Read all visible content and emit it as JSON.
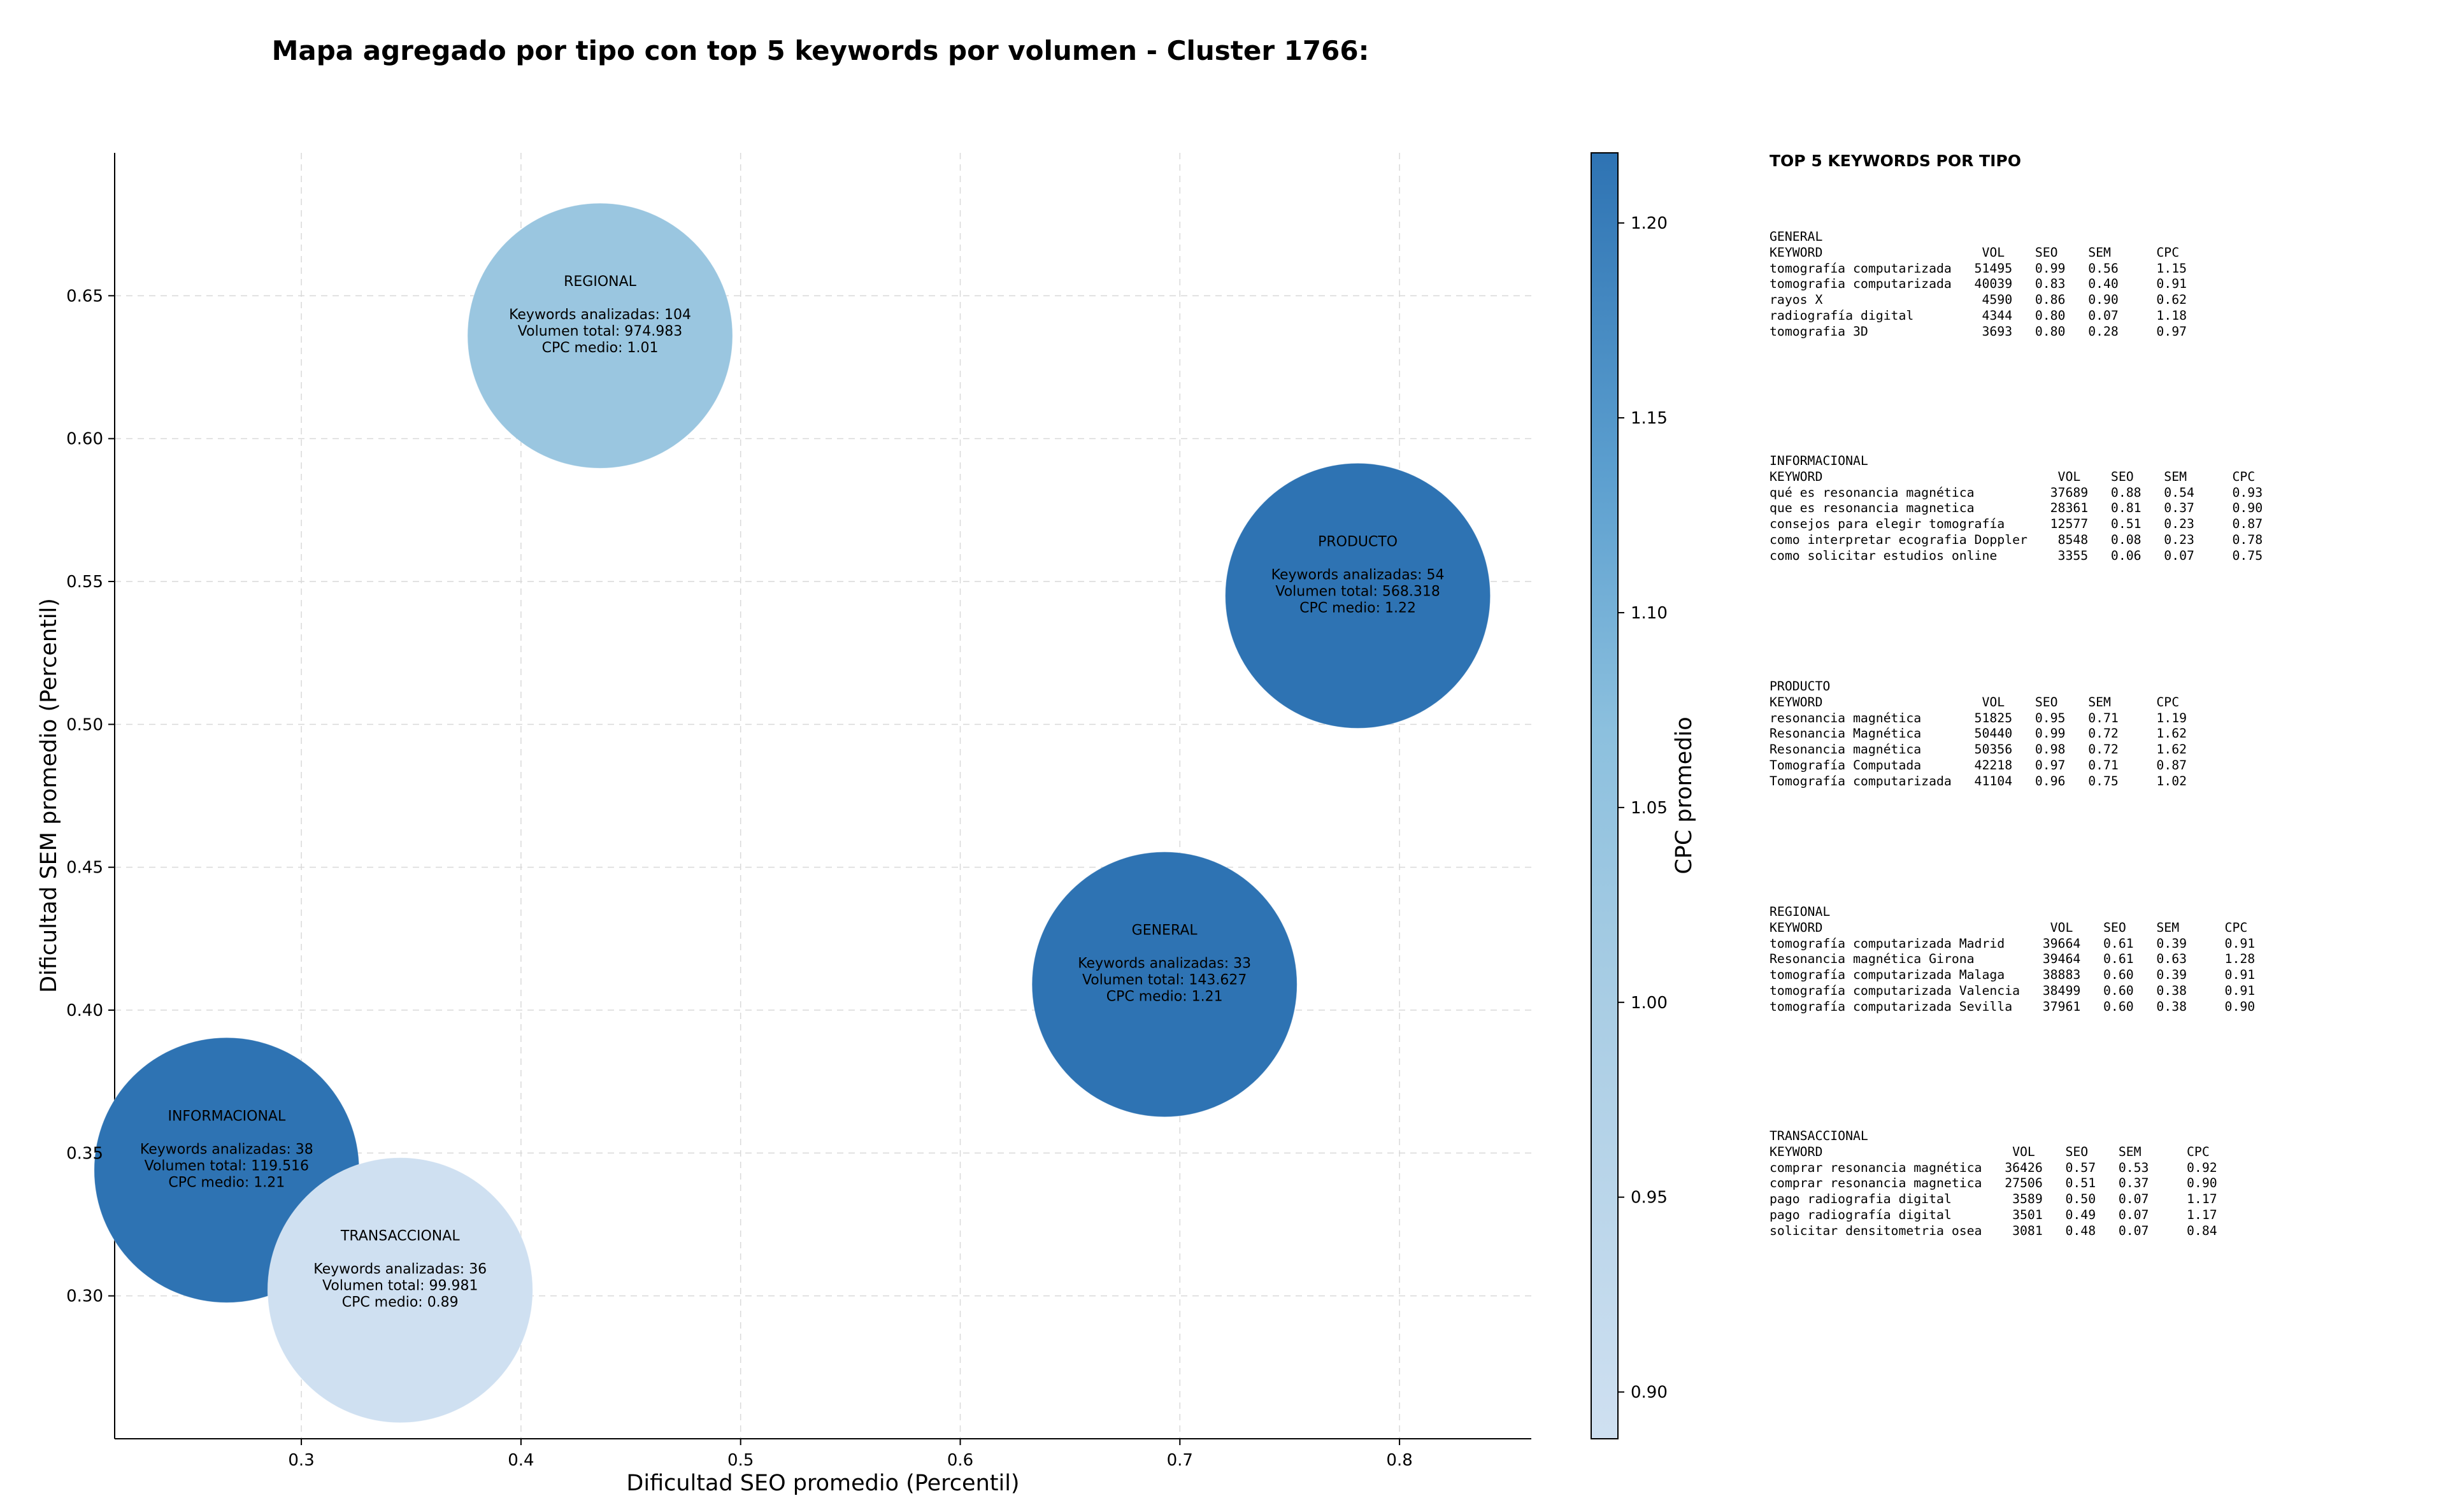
{
  "chart_data": {
    "type": "scatter",
    "title": "Mapa agregado por tipo con top 5 keywords por volumen - Cluster 1766:",
    "xlabel": "Dificultad SEO promedio (Percentil)",
    "ylabel": "Dificultad SEM promedio (Percentil)",
    "xlim": [
      0.215,
      0.86
    ],
    "ylim": [
      0.25,
      0.7
    ],
    "xticks": [
      "0.3",
      "0.4",
      "0.5",
      "0.6",
      "0.7",
      "0.8"
    ],
    "yticks": [
      "0.30",
      "0.35",
      "0.40",
      "0.45",
      "0.50",
      "0.55",
      "0.60",
      "0.65"
    ],
    "grid": true,
    "colorbar": {
      "label": "CPC promedio",
      "range": [
        0.888,
        1.218
      ],
      "ticks": [
        "0.90",
        "0.95",
        "1.00",
        "1.05",
        "1.10",
        "1.15",
        "1.20"
      ]
    },
    "points": [
      {
        "name": "REGIONAL",
        "x": 0.436,
        "y": 0.636,
        "cpc": 1.01,
        "line1": "Keywords analizadas: 104",
        "line2": "Volumen total: 974.983",
        "line3": "CPC medio: 1.01"
      },
      {
        "name": "PRODUCTO",
        "x": 0.781,
        "y": 0.545,
        "cpc": 1.22,
        "line1": "Keywords analizadas: 54",
        "line2": "Volumen total: 568.318",
        "line3": "CPC medio: 1.22"
      },
      {
        "name": "GENERAL",
        "x": 0.693,
        "y": 0.409,
        "cpc": 1.21,
        "line1": "Keywords analizadas: 33",
        "line2": "Volumen total: 143.627",
        "line3": "CPC medio: 1.21"
      },
      {
        "name": "INFORMACIONAL",
        "x": 0.266,
        "y": 0.344,
        "cpc": 1.21,
        "line1": "Keywords analizadas: 38",
        "line2": "Volumen total: 119.516",
        "line3": "CPC medio: 1.21"
      },
      {
        "name": "TRANSACCIONAL",
        "x": 0.345,
        "y": 0.302,
        "cpc": 0.89,
        "line1": "Keywords analizadas: 36",
        "line2": "Volumen total: 99.981",
        "line3": "CPC medio: 0.89"
      }
    ]
  },
  "colors": {
    "dark_blue": "#2e73b3",
    "mid_blue": "#9ac6e0",
    "light_blue": "#cfe0f1"
  },
  "top5": {
    "heading": "TOP 5 KEYWORDS POR TIPO",
    "groups": [
      {
        "lines": [
          "GENERAL",
          "KEYWORD                     VOL    SEO    SEM      CPC",
          "tomografía computarizada   51495   0.99   0.56     1.15",
          "tomografia computarizada   40039   0.83   0.40     0.91",
          "rayos X                     4590   0.86   0.90     0.62",
          "radiografía digital         4344   0.80   0.07     1.18",
          "tomografia 3D               3693   0.80   0.28     0.97"
        ]
      },
      {
        "lines": [
          "INFORMACIONAL",
          "KEYWORD                               VOL    SEO    SEM      CPC",
          "qué es resonancia magnética          37689   0.88   0.54     0.93",
          "que es resonancia magnetica          28361   0.81   0.37     0.90",
          "consejos para elegir tomografía      12577   0.51   0.23     0.87",
          "como interpretar ecografia Doppler    8548   0.08   0.23     0.78",
          "como solicitar estudios online        3355   0.06   0.07     0.75"
        ]
      },
      {
        "lines": [
          "PRODUCTO",
          "KEYWORD                     VOL    SEO    SEM      CPC",
          "resonancia magnética       51825   0.95   0.71     1.19",
          "Resonancia Magnética       50440   0.99   0.72     1.62",
          "Resonancia magnética       50356   0.98   0.72     1.62",
          "Tomografía Computada       42218   0.97   0.71     0.87",
          "Tomografía computarizada   41104   0.96   0.75     1.02"
        ]
      },
      {
        "lines": [
          "REGIONAL",
          "KEYWORD                              VOL    SEO    SEM      CPC",
          "tomografía computarizada Madrid     39664   0.61   0.39     0.91",
          "Resonancia magnética Girona         39464   0.61   0.63     1.28",
          "tomografía computarizada Malaga     38883   0.60   0.39     0.91",
          "tomografía computarizada Valencia   38499   0.60   0.38     0.91",
          "tomografía computarizada Sevilla    37961   0.60   0.38     0.90"
        ]
      },
      {
        "lines": [
          "TRANSACCIONAL",
          "KEYWORD                         VOL    SEO    SEM      CPC",
          "comprar resonancia magnética   36426   0.57   0.53     0.92",
          "comprar resonancia magnetica   27506   0.51   0.37     0.90",
          "pago radiografia digital        3589   0.50   0.07     1.17",
          "pago radiografía digital        3501   0.49   0.07     1.17",
          "solicitar densitometria osea    3081   0.48   0.07     0.84"
        ]
      }
    ]
  }
}
